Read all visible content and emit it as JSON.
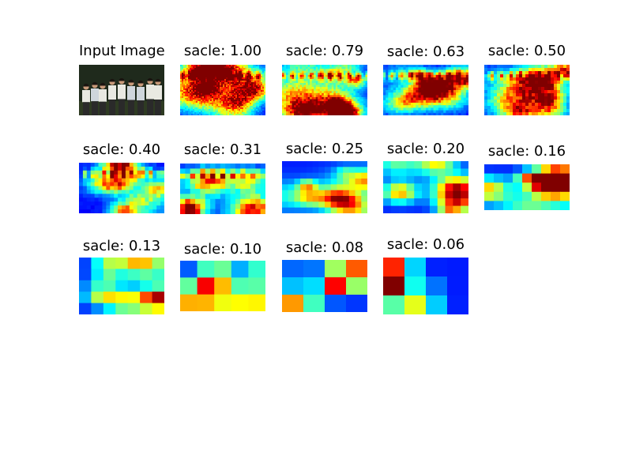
{
  "input_panel": {
    "title": "Input Image",
    "palette": {
      "background_dark": "#1f2a1c",
      "ground": "#2e3b22",
      "shirt_white": "#e9e9e2",
      "shirt_light": "#cfd6dc",
      "pants_dark": "#2a2a2a",
      "skin": "#c99a7a",
      "hair": "#1a1410"
    }
  },
  "heatmap_colormap": [
    "#00008f",
    "#0000ff",
    "#0080ff",
    "#00ffff",
    "#80ff80",
    "#ffff00",
    "#ff8000",
    "#ff0000",
    "#800000"
  ],
  "heatmaps": [
    {
      "label": "sacle: 1.00",
      "scale": 1.0
    },
    {
      "label": "sacle: 0.79",
      "scale": 0.79
    },
    {
      "label": "sacle: 0.63",
      "scale": 0.63
    },
    {
      "label": "sacle: 0.50",
      "scale": 0.5
    },
    {
      "label": "sacle: 0.40",
      "scale": 0.4
    },
    {
      "label": "sacle: 0.31",
      "scale": 0.31
    },
    {
      "label": "sacle: 0.25",
      "scale": 0.25
    },
    {
      "label": "sacle: 0.20",
      "scale": 0.2
    },
    {
      "label": "sacle: 0.16",
      "scale": 0.16
    },
    {
      "label": "sacle: 0.13",
      "scale": 0.13
    },
    {
      "label": "sacle: 0.10",
      "scale": 0.1
    },
    {
      "label": "sacle: 0.08",
      "scale": 0.08
    },
    {
      "label": "sacle: 0.06",
      "scale": 0.06
    }
  ]
}
